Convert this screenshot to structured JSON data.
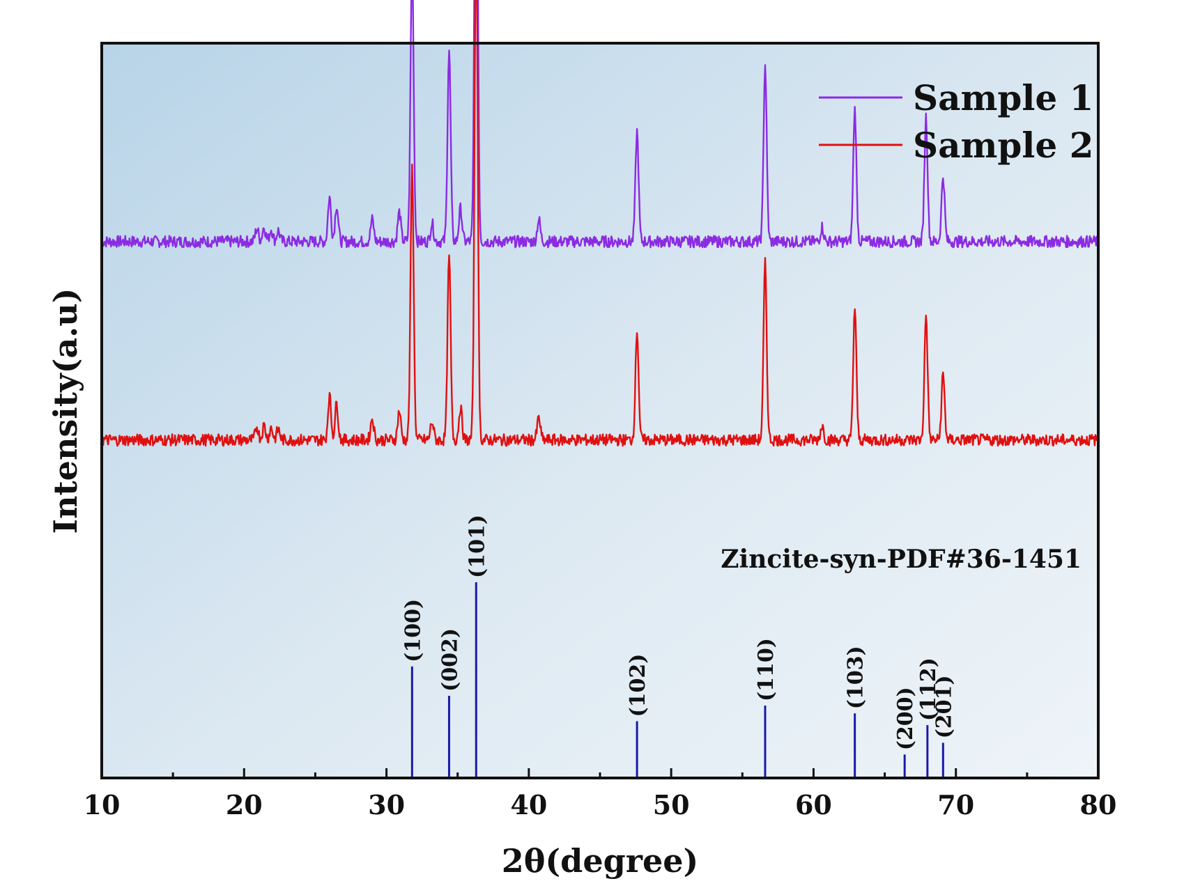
{
  "chart_data": {
    "type": "line",
    "xlabel": "2θ(degree)",
    "ylabel": "Intensity(a.u)",
    "xlim": [
      10,
      80
    ],
    "x_ticks": [
      "10",
      "20",
      "30",
      "40",
      "50",
      "60",
      "70",
      "80"
    ],
    "x_tick_values": [
      10,
      20,
      30,
      40,
      50,
      60,
      70,
      80
    ],
    "y_ticks_shown": false,
    "grid": false,
    "legend_position": "top-right",
    "colors": {
      "sample1": "#8b2be2",
      "sample2": "#e01010",
      "reference": "#1a1aa8",
      "background_gradient": [
        "#b8d4e8",
        "#eef4f8"
      ]
    },
    "ylim": [
      0,
      1
    ],
    "series": [
      {
        "name": "Sample 1",
        "baseline": 0.73,
        "noise": 0.008,
        "peaks": [
          {
            "x": 20.9,
            "y": 0.018
          },
          {
            "x": 21.4,
            "y": 0.02
          },
          {
            "x": 21.9,
            "y": 0.017
          },
          {
            "x": 22.4,
            "y": 0.015
          },
          {
            "x": 26.0,
            "y": 0.06
          },
          {
            "x": 26.5,
            "y": 0.05
          },
          {
            "x": 29.0,
            "y": 0.03
          },
          {
            "x": 30.9,
            "y": 0.04
          },
          {
            "x": 31.8,
            "y": 0.38
          },
          {
            "x": 33.2,
            "y": 0.025
          },
          {
            "x": 34.4,
            "y": 0.26
          },
          {
            "x": 35.2,
            "y": 0.045
          },
          {
            "x": 36.3,
            "y": 0.71
          },
          {
            "x": 40.7,
            "y": 0.03
          },
          {
            "x": 47.6,
            "y": 0.15
          },
          {
            "x": 56.6,
            "y": 0.24
          },
          {
            "x": 60.6,
            "y": 0.02
          },
          {
            "x": 62.9,
            "y": 0.18
          },
          {
            "x": 67.9,
            "y": 0.17
          },
          {
            "x": 69.1,
            "y": 0.09
          }
        ]
      },
      {
        "name": "Sample 2",
        "baseline": 0.46,
        "noise": 0.008,
        "peaks": [
          {
            "x": 20.9,
            "y": 0.018
          },
          {
            "x": 21.4,
            "y": 0.02
          },
          {
            "x": 21.9,
            "y": 0.017
          },
          {
            "x": 22.4,
            "y": 0.015
          },
          {
            "x": 26.0,
            "y": 0.06
          },
          {
            "x": 26.5,
            "y": 0.05
          },
          {
            "x": 29.0,
            "y": 0.03
          },
          {
            "x": 30.9,
            "y": 0.04
          },
          {
            "x": 31.8,
            "y": 0.37
          },
          {
            "x": 33.2,
            "y": 0.025
          },
          {
            "x": 34.4,
            "y": 0.25
          },
          {
            "x": 35.2,
            "y": 0.045
          },
          {
            "x": 36.3,
            "y": 0.71
          },
          {
            "x": 40.7,
            "y": 0.03
          },
          {
            "x": 47.6,
            "y": 0.15
          },
          {
            "x": 56.6,
            "y": 0.24
          },
          {
            "x": 60.6,
            "y": 0.02
          },
          {
            "x": 62.9,
            "y": 0.18
          },
          {
            "x": 67.9,
            "y": 0.17
          },
          {
            "x": 69.1,
            "y": 0.09
          }
        ]
      }
    ],
    "reference": {
      "title": "Zincite-syn-PDF#36-1451",
      "lines": [
        {
          "x": 31.8,
          "intensity": 0.57,
          "label": "(100)"
        },
        {
          "x": 34.4,
          "intensity": 0.42,
          "label": "(002)"
        },
        {
          "x": 36.3,
          "intensity": 1.0,
          "label": "(101)"
        },
        {
          "x": 47.6,
          "intensity": 0.29,
          "label": "(102)"
        },
        {
          "x": 56.6,
          "intensity": 0.37,
          "label": "(110)"
        },
        {
          "x": 62.9,
          "intensity": 0.33,
          "label": "(103)"
        },
        {
          "x": 66.4,
          "intensity": 0.12,
          "label": "(200)"
        },
        {
          "x": 68.0,
          "intensity": 0.27,
          "label": "(112)"
        },
        {
          "x": 69.1,
          "intensity": 0.18,
          "label": "(201)"
        }
      ]
    }
  }
}
